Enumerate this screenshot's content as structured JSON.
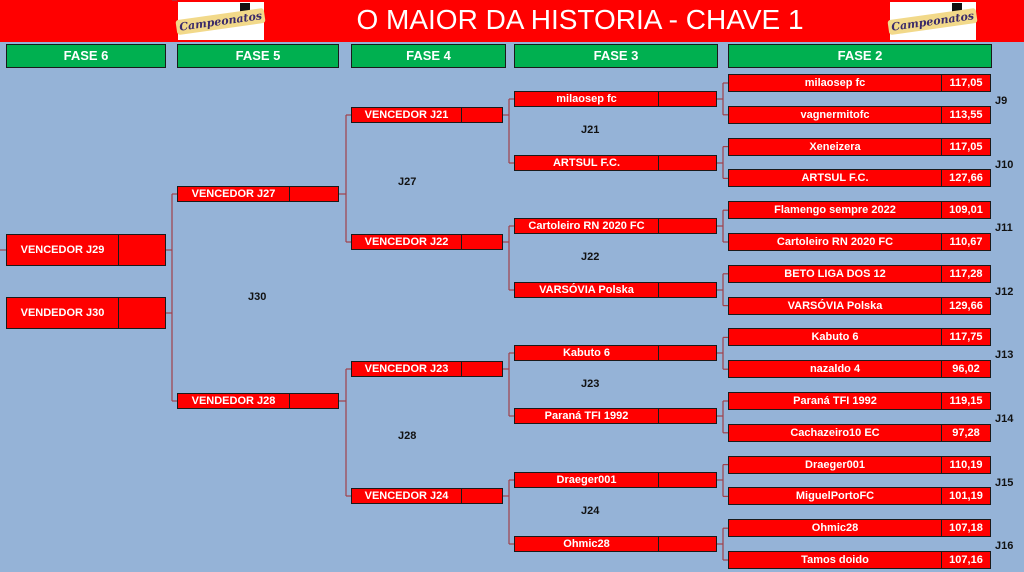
{
  "header": {
    "title": "O MAIOR DA HISTORIA - CHAVE 1",
    "logo_text": "Só Campeonatos"
  },
  "phases": [
    "FASE 6",
    "FASE 5",
    "FASE 4",
    "FASE 3",
    "FASE 2"
  ],
  "colors": {
    "background": "#95b3d7",
    "header": "#ff0000",
    "phase": "#00b050",
    "box": "#ff0000",
    "line": "#a0404a"
  },
  "fase2": [
    {
      "name": "milaosep fc",
      "score": "117,05"
    },
    {
      "name": "vagnermitofc",
      "score": "113,55"
    },
    {
      "name": "Xeneizera",
      "score": "117,05"
    },
    {
      "name": "ARTSUL F.C.",
      "score": "127,66"
    },
    {
      "name": "Flamengo sempre 2022",
      "score": "109,01"
    },
    {
      "name": "Cartoleiro RN 2020 FC",
      "score": "110,67"
    },
    {
      "name": "BETO LIGA DOS 12",
      "score": "117,28"
    },
    {
      "name": "VARSÓVIA Polska",
      "score": "129,66"
    },
    {
      "name": "Kabuto 6",
      "score": "117,75"
    },
    {
      "name": "nazaldo 4",
      "score": "96,02"
    },
    {
      "name": "Paraná TFI 1992",
      "score": "119,15"
    },
    {
      "name": "Cachazeiro10 EC",
      "score": "97,28"
    },
    {
      "name": "Draeger001",
      "score": "110,19"
    },
    {
      "name": "MiguelPortoFC",
      "score": "101,19"
    },
    {
      "name": "Ohmic28",
      "score": "107,18"
    },
    {
      "name": "Tamos doido",
      "score": "107,16"
    }
  ],
  "fase2_games": [
    "J9",
    "J10",
    "J11",
    "J12",
    "J13",
    "J14",
    "J15",
    "J16"
  ],
  "fase3": [
    {
      "name": "milaosep fc",
      "score": ""
    },
    {
      "name": "ARTSUL F.C.",
      "score": ""
    },
    {
      "name": "Cartoleiro RN 2020 FC",
      "score": ""
    },
    {
      "name": "VARSÓVIA Polska",
      "score": ""
    },
    {
      "name": "Kabuto 6",
      "score": ""
    },
    {
      "name": "Paraná TFI 1992",
      "score": ""
    },
    {
      "name": "Draeger001",
      "score": ""
    },
    {
      "name": "Ohmic28",
      "score": ""
    }
  ],
  "fase3_games": [
    "J21",
    "J22",
    "J23",
    "J24"
  ],
  "fase4": [
    {
      "name": "VENCEDOR J21",
      "score": ""
    },
    {
      "name": "VENCEDOR J22",
      "score": ""
    },
    {
      "name": "VENCEDOR J23",
      "score": ""
    },
    {
      "name": "VENCEDOR J24",
      "score": ""
    }
  ],
  "fase4_games": [
    "J27",
    "J28"
  ],
  "fase5": [
    {
      "name": "VENCEDOR J27",
      "score": ""
    },
    {
      "name": "VENDEDOR J28",
      "score": ""
    }
  ],
  "fase5_games": [
    "J30"
  ],
  "fase6": [
    {
      "name": "VENCEDOR J29",
      "score": ""
    },
    {
      "name": "VENDEDOR J30",
      "score": ""
    }
  ]
}
